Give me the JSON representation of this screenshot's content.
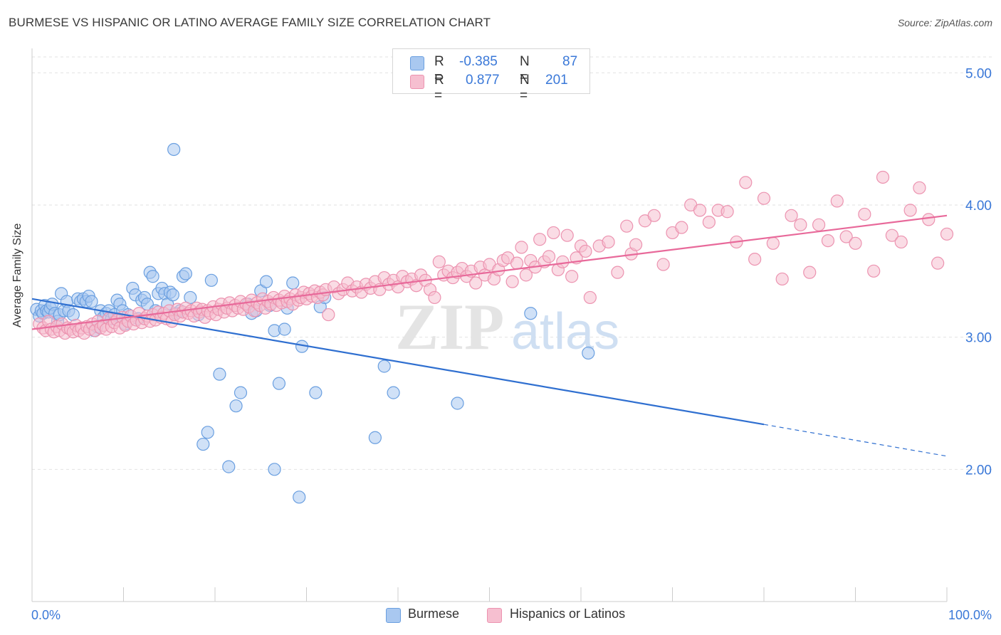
{
  "title": "BURMESE VS HISPANIC OR LATINO AVERAGE FAMILY SIZE CORRELATION CHART",
  "source": "Source: ZipAtlas.com",
  "watermark": {
    "zip": "ZIP",
    "atlas": "atlas"
  },
  "legend_stats": [
    {
      "r_label": "R =",
      "r_value": "-0.385",
      "n_label": "N =",
      "n_value": "87"
    },
    {
      "r_label": "R =",
      "r_value": "0.877",
      "n_label": "N =",
      "n_value": "201"
    }
  ],
  "colors": {
    "burmese_fill": "#a9c8f0",
    "burmese_stroke": "#6a9fe0",
    "burmese_line": "#2f6fd0",
    "hispanic_fill": "#f6bfd0",
    "hispanic_stroke": "#ec93b0",
    "hispanic_line": "#e8699a",
    "grid": "#e2e2e2",
    "tick_label": "#3a78d8"
  },
  "chart_data": {
    "type": "scatter",
    "title": "BURMESE VS HISPANIC OR LATINO AVERAGE FAMILY SIZE CORRELATION CHART",
    "xlabel": "",
    "ylabel": "Average Family Size",
    "xlim": [
      0,
      100
    ],
    "ylim": [
      1.0,
      5.12
    ],
    "x_tick_labels": [
      "0.0%",
      "100.0%"
    ],
    "y_ticks": [
      2.0,
      3.0,
      4.0,
      5.0
    ],
    "y_tick_labels": [
      "2.00",
      "3.00",
      "4.00",
      "5.00"
    ],
    "grid": true,
    "legend_position": "bottom-center",
    "series": [
      {
        "name": "Burmese",
        "r": -0.385,
        "n": 87,
        "trend": {
          "x0": 0,
          "y0": 3.29,
          "x1": 80,
          "y1": 2.34,
          "dashed_to_x": 100,
          "dashed_to_y": 2.1
        },
        "points": [
          [
            0.5,
            3.21
          ],
          [
            0.8,
            3.16
          ],
          [
            1.0,
            3.2
          ],
          [
            1.2,
            3.18
          ],
          [
            1.4,
            3.24
          ],
          [
            1.6,
            3.2
          ],
          [
            1.8,
            3.19
          ],
          [
            2.0,
            3.22
          ],
          [
            2.2,
            3.25
          ],
          [
            2.5,
            3.18
          ],
          [
            2.8,
            3.12
          ],
          [
            3.0,
            3.17
          ],
          [
            3.2,
            3.33
          ],
          [
            3.5,
            3.2
          ],
          [
            3.8,
            3.27
          ],
          [
            4.0,
            3.2
          ],
          [
            4.5,
            3.17
          ],
          [
            5.0,
            3.29
          ],
          [
            5.3,
            3.27
          ],
          [
            5.6,
            3.29
          ],
          [
            5.9,
            3.27
          ],
          [
            6.2,
            3.31
          ],
          [
            6.5,
            3.27
          ],
          [
            6.8,
            3.05
          ],
          [
            7.1,
            3.08
          ],
          [
            7.5,
            3.2
          ],
          [
            7.8,
            3.15
          ],
          [
            8.1,
            3.18
          ],
          [
            8.4,
            3.2
          ],
          [
            8.7,
            3.14
          ],
          [
            9.0,
            3.17
          ],
          [
            9.3,
            3.28
          ],
          [
            9.6,
            3.25
          ],
          [
            9.9,
            3.2
          ],
          [
            10.2,
            3.1
          ],
          [
            10.5,
            3.17
          ],
          [
            11.0,
            3.37
          ],
          [
            11.3,
            3.32
          ],
          [
            11.6,
            3.14
          ],
          [
            12.0,
            3.28
          ],
          [
            12.3,
            3.3
          ],
          [
            12.6,
            3.25
          ],
          [
            12.9,
            3.49
          ],
          [
            13.2,
            3.46
          ],
          [
            13.5,
            3.2
          ],
          [
            13.8,
            3.33
          ],
          [
            14.2,
            3.37
          ],
          [
            14.5,
            3.33
          ],
          [
            14.8,
            3.25
          ],
          [
            15.1,
            3.34
          ],
          [
            15.4,
            3.32
          ],
          [
            15.7,
            3.18
          ],
          [
            16.2,
            3.2
          ],
          [
            16.5,
            3.46
          ],
          [
            16.8,
            3.48
          ],
          [
            17.3,
            3.3
          ],
          [
            18.2,
            3.17
          ],
          [
            19.6,
            3.43
          ],
          [
            20.5,
            2.72
          ],
          [
            21.5,
            2.02
          ],
          [
            22.3,
            2.48
          ],
          [
            22.8,
            2.58
          ],
          [
            23.6,
            3.25
          ],
          [
            24.0,
            3.18
          ],
          [
            24.5,
            3.2
          ],
          [
            25.0,
            3.35
          ],
          [
            25.6,
            3.42
          ],
          [
            26.0,
            3.24
          ],
          [
            26.5,
            3.05
          ],
          [
            26.5,
            2.0
          ],
          [
            27.0,
            2.65
          ],
          [
            27.6,
            3.06
          ],
          [
            27.9,
            3.22
          ],
          [
            28.5,
            3.41
          ],
          [
            29.5,
            2.93
          ],
          [
            31.0,
            2.58
          ],
          [
            31.5,
            3.23
          ],
          [
            32.0,
            3.3
          ],
          [
            37.5,
            2.24
          ],
          [
            38.5,
            2.78
          ],
          [
            39.5,
            2.58
          ],
          [
            46.5,
            2.5
          ],
          [
            54.5,
            3.18
          ],
          [
            60.8,
            2.88
          ],
          [
            15.5,
            4.42
          ],
          [
            18.7,
            2.19
          ],
          [
            19.2,
            2.28
          ],
          [
            29.2,
            1.79
          ]
        ]
      },
      {
        "name": "Hispanics or Latinos",
        "r": 0.877,
        "n": 201,
        "trend": {
          "x0": 0,
          "y0": 3.06,
          "x1": 100,
          "y1": 3.92
        },
        "points": [
          [
            0.8,
            3.1
          ],
          [
            1.2,
            3.07
          ],
          [
            1.5,
            3.05
          ],
          [
            1.8,
            3.12
          ],
          [
            2.1,
            3.06
          ],
          [
            2.4,
            3.04
          ],
          [
            2.7,
            3.08
          ],
          [
            3.0,
            3.05
          ],
          [
            3.3,
            3.1
          ],
          [
            3.6,
            3.03
          ],
          [
            3.9,
            3.07
          ],
          [
            4.2,
            3.06
          ],
          [
            4.5,
            3.04
          ],
          [
            4.8,
            3.09
          ],
          [
            5.1,
            3.05
          ],
          [
            5.4,
            3.07
          ],
          [
            5.7,
            3.03
          ],
          [
            6.0,
            3.08
          ],
          [
            6.3,
            3.06
          ],
          [
            6.6,
            3.1
          ],
          [
            6.9,
            3.05
          ],
          [
            7.2,
            3.12
          ],
          [
            7.5,
            3.07
          ],
          [
            7.8,
            3.09
          ],
          [
            8.1,
            3.06
          ],
          [
            8.4,
            3.14
          ],
          [
            8.7,
            3.08
          ],
          [
            9.0,
            3.11
          ],
          [
            9.3,
            3.13
          ],
          [
            9.6,
            3.07
          ],
          [
            9.9,
            3.15
          ],
          [
            10.2,
            3.09
          ],
          [
            10.5,
            3.12
          ],
          [
            10.8,
            3.16
          ],
          [
            11.1,
            3.1
          ],
          [
            11.4,
            3.13
          ],
          [
            11.7,
            3.18
          ],
          [
            12.0,
            3.11
          ],
          [
            12.3,
            3.14
          ],
          [
            12.6,
            3.16
          ],
          [
            12.9,
            3.12
          ],
          [
            13.2,
            3.17
          ],
          [
            13.5,
            3.13
          ],
          [
            13.8,
            3.19
          ],
          [
            14.1,
            3.15
          ],
          [
            14.4,
            3.18
          ],
          [
            14.7,
            3.14
          ],
          [
            15.0,
            3.2
          ],
          [
            15.3,
            3.12
          ],
          [
            15.6,
            3.17
          ],
          [
            15.9,
            3.21
          ],
          [
            16.2,
            3.16
          ],
          [
            16.5,
            3.19
          ],
          [
            16.8,
            3.22
          ],
          [
            17.1,
            3.18
          ],
          [
            17.4,
            3.2
          ],
          [
            17.7,
            3.16
          ],
          [
            18.0,
            3.22
          ],
          [
            18.3,
            3.19
          ],
          [
            18.6,
            3.21
          ],
          [
            18.9,
            3.15
          ],
          [
            19.2,
            3.2
          ],
          [
            19.5,
            3.18
          ],
          [
            19.8,
            3.23
          ],
          [
            20.1,
            3.17
          ],
          [
            20.4,
            3.21
          ],
          [
            20.7,
            3.25
          ],
          [
            21.0,
            3.19
          ],
          [
            21.3,
            3.22
          ],
          [
            21.6,
            3.26
          ],
          [
            21.9,
            3.2
          ],
          [
            22.2,
            3.24
          ],
          [
            22.5,
            3.22
          ],
          [
            22.8,
            3.27
          ],
          [
            23.1,
            3.21
          ],
          [
            23.4,
            3.25
          ],
          [
            23.7,
            3.23
          ],
          [
            24.0,
            3.28
          ],
          [
            24.3,
            3.2
          ],
          [
            24.6,
            3.26
          ],
          [
            24.9,
            3.24
          ],
          [
            25.2,
            3.29
          ],
          [
            25.5,
            3.22
          ],
          [
            25.8,
            3.27
          ],
          [
            26.1,
            3.25
          ],
          [
            26.4,
            3.3
          ],
          [
            26.7,
            3.24
          ],
          [
            27.0,
            3.28
          ],
          [
            27.3,
            3.26
          ],
          [
            27.6,
            3.31
          ],
          [
            27.9,
            3.27
          ],
          [
            28.2,
            3.29
          ],
          [
            28.5,
            3.25
          ],
          [
            28.8,
            3.32
          ],
          [
            29.1,
            3.28
          ],
          [
            29.4,
            3.3
          ],
          [
            29.7,
            3.34
          ],
          [
            30.0,
            3.29
          ],
          [
            30.3,
            3.33
          ],
          [
            30.6,
            3.31
          ],
          [
            30.9,
            3.35
          ],
          [
            31.2,
            3.3
          ],
          [
            31.5,
            3.34
          ],
          [
            31.8,
            3.32
          ],
          [
            32.1,
            3.36
          ],
          [
            32.4,
            3.17
          ],
          [
            33.0,
            3.38
          ],
          [
            33.5,
            3.33
          ],
          [
            34.0,
            3.36
          ],
          [
            34.5,
            3.41
          ],
          [
            35.0,
            3.35
          ],
          [
            35.5,
            3.38
          ],
          [
            36.0,
            3.34
          ],
          [
            36.5,
            3.4
          ],
          [
            37.0,
            3.37
          ],
          [
            37.5,
            3.42
          ],
          [
            38.0,
            3.36
          ],
          [
            38.5,
            3.45
          ],
          [
            39.0,
            3.4
          ],
          [
            39.5,
            3.43
          ],
          [
            40.0,
            3.38
          ],
          [
            40.5,
            3.46
          ],
          [
            41.0,
            3.42
          ],
          [
            41.5,
            3.44
          ],
          [
            42.0,
            3.39
          ],
          [
            42.5,
            3.47
          ],
          [
            43.0,
            3.43
          ],
          [
            43.5,
            3.36
          ],
          [
            44.0,
            3.3
          ],
          [
            44.5,
            3.57
          ],
          [
            45.0,
            3.47
          ],
          [
            45.5,
            3.5
          ],
          [
            46.0,
            3.45
          ],
          [
            46.5,
            3.49
          ],
          [
            47.0,
            3.52
          ],
          [
            47.5,
            3.46
          ],
          [
            48.0,
            3.5
          ],
          [
            48.5,
            3.41
          ],
          [
            49.0,
            3.53
          ],
          [
            49.5,
            3.47
          ],
          [
            50.0,
            3.55
          ],
          [
            50.5,
            3.44
          ],
          [
            51.0,
            3.51
          ],
          [
            51.5,
            3.58
          ],
          [
            52.0,
            3.6
          ],
          [
            52.5,
            3.42
          ],
          [
            53.0,
            3.56
          ],
          [
            53.5,
            3.68
          ],
          [
            54.0,
            3.47
          ],
          [
            54.5,
            3.58
          ],
          [
            55.0,
            3.53
          ],
          [
            55.5,
            3.74
          ],
          [
            56.0,
            3.57
          ],
          [
            56.5,
            3.61
          ],
          [
            57.0,
            3.79
          ],
          [
            57.5,
            3.51
          ],
          [
            58.0,
            3.57
          ],
          [
            58.5,
            3.77
          ],
          [
            59.0,
            3.46
          ],
          [
            59.5,
            3.6
          ],
          [
            60.0,
            3.69
          ],
          [
            60.5,
            3.65
          ],
          [
            61.0,
            3.3
          ],
          [
            62.0,
            3.69
          ],
          [
            63.0,
            3.72
          ],
          [
            64.0,
            3.49
          ],
          [
            65.0,
            3.84
          ],
          [
            65.5,
            3.63
          ],
          [
            66.0,
            3.7
          ],
          [
            67.0,
            3.88
          ],
          [
            68.0,
            3.92
          ],
          [
            69.0,
            3.55
          ],
          [
            70.0,
            3.79
          ],
          [
            71.0,
            3.83
          ],
          [
            72.0,
            4.0
          ],
          [
            73.0,
            3.96
          ],
          [
            74.0,
            3.87
          ],
          [
            75.0,
            3.96
          ],
          [
            76.0,
            3.95
          ],
          [
            77.0,
            3.72
          ],
          [
            78.0,
            4.17
          ],
          [
            79.0,
            3.59
          ],
          [
            80.0,
            4.05
          ],
          [
            81.0,
            3.71
          ],
          [
            82.0,
            3.44
          ],
          [
            83.0,
            3.92
          ],
          [
            84.0,
            3.85
          ],
          [
            85.0,
            3.49
          ],
          [
            86.0,
            3.85
          ],
          [
            87.0,
            3.73
          ],
          [
            88.0,
            4.03
          ],
          [
            89.0,
            3.76
          ],
          [
            90.0,
            3.71
          ],
          [
            91.0,
            3.93
          ],
          [
            92.0,
            3.5
          ],
          [
            93.0,
            4.21
          ],
          [
            94.0,
            3.77
          ],
          [
            95.0,
            3.72
          ],
          [
            96.0,
            3.96
          ],
          [
            97.0,
            4.13
          ],
          [
            98.0,
            3.89
          ],
          [
            99.0,
            3.56
          ],
          [
            100.0,
            3.78
          ]
        ]
      }
    ]
  }
}
